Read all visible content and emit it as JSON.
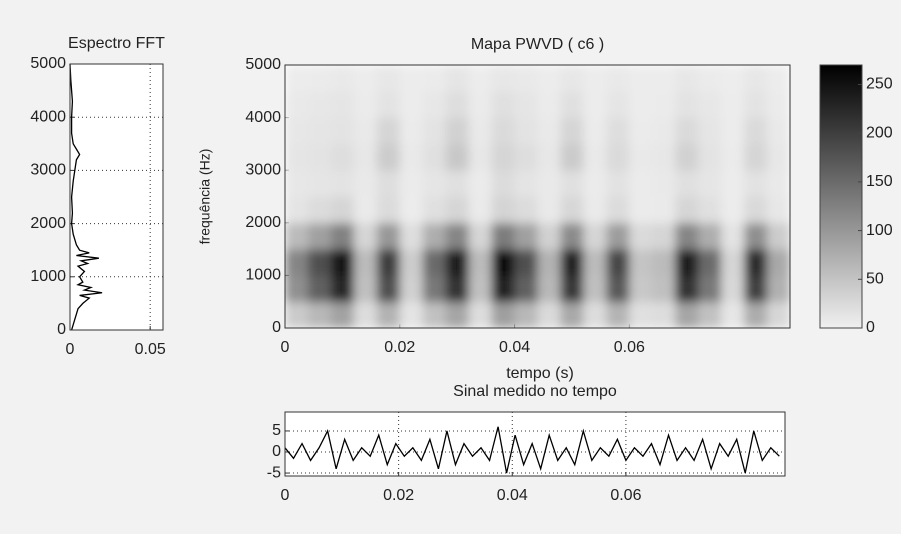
{
  "chart_data": [
    {
      "type": "line",
      "title": "Espectro FFT",
      "color": "#000000",
      "grid": true,
      "xlim": [
        0,
        0.058
      ],
      "xticks": [
        0,
        0.05
      ],
      "ylim": [
        0,
        5000
      ],
      "yticks": [
        0,
        1000,
        2000,
        3000,
        4000,
        5000
      ],
      "x": [
        0.001,
        0.002,
        0.003,
        0.004,
        0.005,
        0.008,
        0.012,
        0.006,
        0.02,
        0.009,
        0.013,
        0.005,
        0.008,
        0.006,
        0.009,
        0.005,
        0.011,
        0.007,
        0.018,
        0.004,
        0.012,
        0.006,
        0.004,
        0.002,
        0.001,
        0.0015,
        0.001,
        0.002,
        0.003,
        0.004,
        0.006,
        0.004,
        0.002,
        0.001,
        0.001,
        0.0015,
        0.001,
        0.0005,
        0
      ],
      "values": [
        0,
        100,
        200,
        300,
        400,
        500,
        600,
        650,
        700,
        750,
        800,
        850,
        900,
        1000,
        1100,
        1200,
        1250,
        1300,
        1350,
        1400,
        1450,
        1500,
        1600,
        1800,
        2000,
        2200,
        2500,
        2800,
        3000,
        3200,
        3300,
        3400,
        3500,
        3700,
        4000,
        4300,
        4500,
        4700,
        5000
      ]
    },
    {
      "type": "heatmap",
      "title": "Mapa PWVD ( c6 )",
      "xlabel": "tempo (s)",
      "ylabel": "frequência (Hz)",
      "xlim": [
        0,
        0.088
      ],
      "xticks": [
        0,
        0.02,
        0.04,
        0.06
      ],
      "ylim": [
        0,
        5000
      ],
      "yticks": [
        0,
        1000,
        2000,
        3000,
        4000,
        5000
      ],
      "x": [
        0.002,
        0.006,
        0.01,
        0.014,
        0.018,
        0.022,
        0.026,
        0.03,
        0.034,
        0.038,
        0.042,
        0.046,
        0.05,
        0.054,
        0.058,
        0.062,
        0.066,
        0.07,
        0.074,
        0.078,
        0.082,
        0.086
      ],
      "y": [
        250,
        750,
        1250,
        1750,
        2250,
        2750,
        3250,
        3750,
        4250,
        4750
      ],
      "z": [
        [
          42,
          63,
          88,
          21,
          70,
          14,
          53,
          84,
          21,
          91,
          63,
          25,
          81,
          21,
          67,
          18,
          21,
          84,
          53,
          11,
          77,
          28
        ],
        [
          108,
          162,
          225,
          54,
          180,
          36,
          135,
          216,
          54,
          234,
          162,
          63,
          207,
          54,
          171,
          45,
          54,
          216,
          135,
          27,
          198,
          72
        ],
        [
          120,
          180,
          250,
          60,
          200,
          40,
          150,
          240,
          60,
          260,
          180,
          70,
          230,
          60,
          190,
          50,
          60,
          240,
          150,
          30,
          220,
          80
        ],
        [
          60,
          90,
          125,
          30,
          100,
          20,
          75,
          120,
          30,
          130,
          90,
          35,
          115,
          30,
          95,
          25,
          30,
          120,
          75,
          15,
          110,
          40
        ],
        [
          14,
          22,
          30,
          7,
          24,
          5,
          18,
          29,
          7,
          31,
          22,
          8,
          28,
          7,
          23,
          6,
          7,
          29,
          18,
          4,
          26,
          10
        ],
        [
          10,
          12,
          15,
          8,
          20,
          6,
          12,
          18,
          6,
          22,
          14,
          8,
          18,
          6,
          16,
          6,
          8,
          18,
          12,
          5,
          16,
          8
        ],
        [
          12,
          15,
          20,
          10,
          40,
          8,
          18,
          45,
          10,
          30,
          20,
          10,
          42,
          8,
          25,
          8,
          10,
          35,
          15,
          6,
          30,
          10
        ],
        [
          10,
          12,
          15,
          8,
          30,
          6,
          15,
          35,
          8,
          25,
          15,
          8,
          30,
          6,
          20,
          6,
          8,
          25,
          12,
          5,
          25,
          8
        ],
        [
          8,
          10,
          12,
          6,
          15,
          5,
          10,
          20,
          6,
          18,
          12,
          6,
          18,
          5,
          12,
          5,
          6,
          15,
          10,
          4,
          15,
          6
        ],
        [
          5,
          6,
          8,
          4,
          10,
          4,
          6,
          12,
          4,
          10,
          8,
          4,
          10,
          4,
          8,
          4,
          4,
          10,
          6,
          3,
          10,
          4
        ]
      ],
      "zlim": [
        0,
        270
      ],
      "colorbar_ticks": [
        0,
        50,
        100,
        150,
        200,
        250
      ]
    },
    {
      "type": "line",
      "title": "Sinal medido no tempo",
      "color": "#000000",
      "grid": true,
      "xlim": [
        0,
        0.088
      ],
      "xticks": [
        0,
        0.02,
        0.04,
        0.06
      ],
      "ylim": [
        -5.7,
        9.5
      ],
      "yticks": [
        -5,
        0,
        5
      ],
      "x": [
        0,
        0.0015,
        0.003,
        0.0045,
        0.006,
        0.0075,
        0.009,
        0.0105,
        0.012,
        0.0135,
        0.015,
        0.0165,
        0.018,
        0.0195,
        0.021,
        0.0225,
        0.024,
        0.0255,
        0.027,
        0.0285,
        0.03,
        0.0315,
        0.033,
        0.0345,
        0.036,
        0.0375,
        0.039,
        0.0405,
        0.042,
        0.0435,
        0.045,
        0.0465,
        0.048,
        0.0495,
        0.051,
        0.0525,
        0.054,
        0.0555,
        0.057,
        0.0585,
        0.06,
        0.0615,
        0.063,
        0.0645,
        0.066,
        0.0675,
        0.069,
        0.0705,
        0.072,
        0.0735,
        0.075,
        0.0765,
        0.078,
        0.0795,
        0.081,
        0.0825,
        0.084,
        0.0855,
        0.087
      ],
      "values": [
        1,
        -1.5,
        2,
        -2,
        1,
        5,
        -4,
        3,
        -2,
        1,
        -1,
        4,
        -3,
        2,
        -1,
        1,
        -2,
        3,
        -4,
        5,
        -3,
        2,
        -1,
        1,
        -2,
        6,
        -5,
        4,
        -3,
        2,
        -4,
        4,
        -2,
        1,
        -3,
        5,
        -2,
        1,
        -1,
        3,
        -2,
        1,
        -1,
        2,
        -3,
        4,
        -2,
        1,
        -2,
        3,
        -4,
        2,
        -1,
        3,
        -5,
        5,
        -2,
        1,
        -1
      ]
    }
  ]
}
